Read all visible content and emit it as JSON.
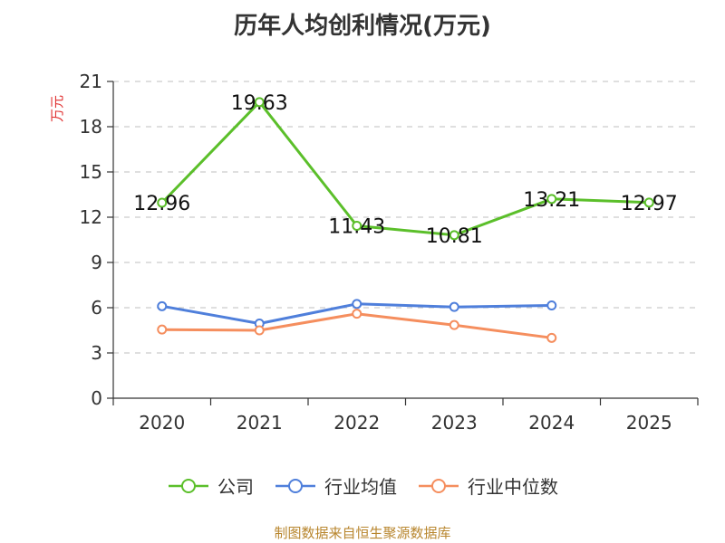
{
  "title": "历年人均创利情况(万元)",
  "source_note": "制图数据来自恒生聚源数据库",
  "chart_data": {
    "type": "line",
    "title": "历年人均创利情况(万元)",
    "ylabel": "万元",
    "xlabel": "",
    "ylim": [
      0,
      21
    ],
    "yticks": [
      0,
      3,
      6,
      9,
      12,
      15,
      18,
      21
    ],
    "categories": [
      "2020",
      "2021",
      "2022",
      "2023",
      "2024",
      "2025"
    ],
    "grid": true,
    "legend_position": "bottom",
    "series": [
      {
        "name": "公司",
        "color": "#5bbf2a",
        "values": [
          12.96,
          19.63,
          11.43,
          10.81,
          13.21,
          12.97
        ],
        "labels": [
          "12.96",
          "19.63",
          "11.43",
          "10.81",
          "13.21",
          "12.97"
        ]
      },
      {
        "name": "行业均值",
        "color": "#4f7fdb",
        "values": [
          6.1,
          4.95,
          6.25,
          6.05,
          6.15,
          null
        ]
      },
      {
        "name": "行业中位数",
        "color": "#f58e5e",
        "values": [
          4.55,
          4.5,
          5.6,
          4.85,
          4.0,
          null
        ]
      }
    ]
  }
}
